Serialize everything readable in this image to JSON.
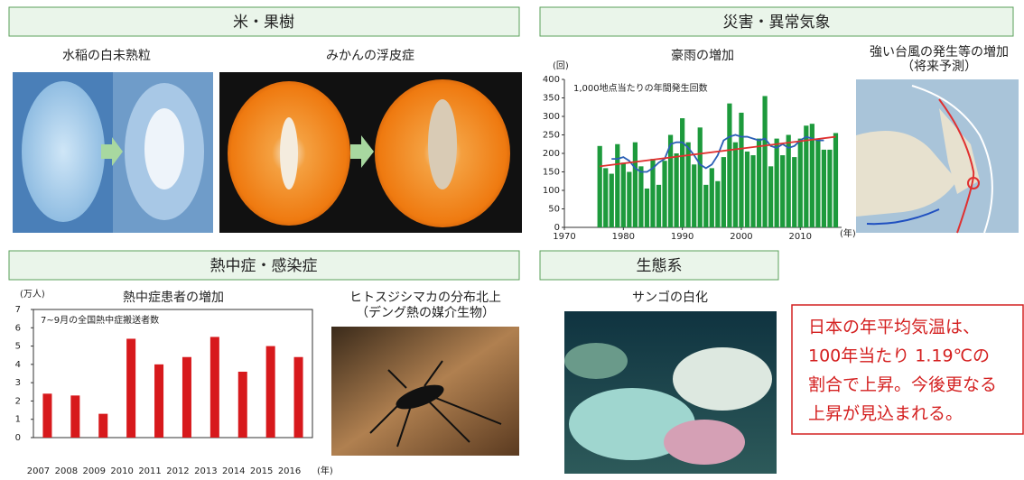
{
  "sections": [
    {
      "title": "米・果樹"
    },
    {
      "title": "災害・異常気象"
    },
    {
      "title": "熱中症・感染症"
    },
    {
      "title": "生態系"
    }
  ],
  "panels": {
    "rice": "水稲の白未熟粒",
    "mikan": "みかんの浮皮症",
    "typhoon": [
      "強い台風の発生等の増加",
      "（将来予測）"
    ],
    "mosquito": [
      "ヒトスジシマカの分布北上",
      "（デング熱の媒介生物）"
    ],
    "coral": "サンゴの白化"
  },
  "note": {
    "lines": [
      "日本の年平均気温は、",
      "100年当たり 1.19℃の",
      "割合で上昇。今後更なる",
      "上昇が見込まれる。"
    ]
  },
  "chart_data": [
    {
      "type": "bar",
      "title": "豪雨の増加",
      "annotation": "1,000地点当たりの年間発生回数",
      "y_unit": "(回)",
      "x_unit": "(年)",
      "x": [
        1976,
        1977,
        1978,
        1979,
        1980,
        1981,
        1982,
        1983,
        1984,
        1985,
        1986,
        1987,
        1988,
        1989,
        1990,
        1991,
        1992,
        1993,
        1994,
        1995,
        1996,
        1997,
        1998,
        1999,
        2000,
        2001,
        2002,
        2003,
        2004,
        2005,
        2006,
        2007,
        2008,
        2009,
        2010,
        2011,
        2012,
        2013,
        2014,
        2015,
        2016
      ],
      "series": [
        {
          "type": "bar",
          "color": "#1d9a3c",
          "values": [
            220,
            160,
            145,
            225,
            175,
            150,
            230,
            165,
            105,
            185,
            115,
            180,
            250,
            200,
            295,
            230,
            170,
            270,
            115,
            160,
            125,
            190,
            335,
            230,
            310,
            205,
            195,
            240,
            355,
            165,
            240,
            195,
            250,
            190,
            240,
            275,
            280,
            240,
            210,
            210,
            255
          ]
        },
        {
          "type": "line",
          "color": "#2b5fb5",
          "values": [
            null,
            null,
            185,
            185,
            190,
            180,
            160,
            150,
            150,
            160,
            175,
            185,
            225,
            230,
            230,
            215,
            195,
            170,
            160,
            170,
            195,
            235,
            245,
            250,
            245,
            245,
            240,
            235,
            240,
            220,
            215,
            225,
            215,
            220,
            235,
            245,
            240,
            235,
            235,
            null,
            null
          ]
        },
        {
          "type": "line",
          "color": "#e0302f",
          "x": [
            1976,
            2016
          ],
          "values": [
            165,
            245
          ]
        }
      ],
      "xlim": [
        1970,
        2017
      ],
      "xticks": [
        1970,
        1980,
        1990,
        2000,
        2010
      ],
      "ylim": [
        0,
        400
      ],
      "yticks": [
        0,
        50,
        100,
        150,
        200,
        250,
        300,
        350,
        400
      ]
    },
    {
      "type": "bar",
      "title": "熱中症患者の増加",
      "annotation": "7~9月の全国熱中症搬送者数",
      "y_unit": "(万人)",
      "x_unit": "(年)",
      "categories": [
        "2007",
        "2008",
        "2009",
        "2010",
        "2011",
        "2012",
        "2013",
        "2014",
        "2015",
        "2016"
      ],
      "color": "#d7191c",
      "values": [
        2.4,
        2.3,
        1.3,
        5.4,
        4.0,
        4.4,
        5.5,
        3.6,
        5.0,
        4.4
      ],
      "ylim": [
        0,
        7
      ],
      "yticks": [
        0,
        1,
        2,
        3,
        4,
        5,
        6,
        7
      ]
    }
  ]
}
